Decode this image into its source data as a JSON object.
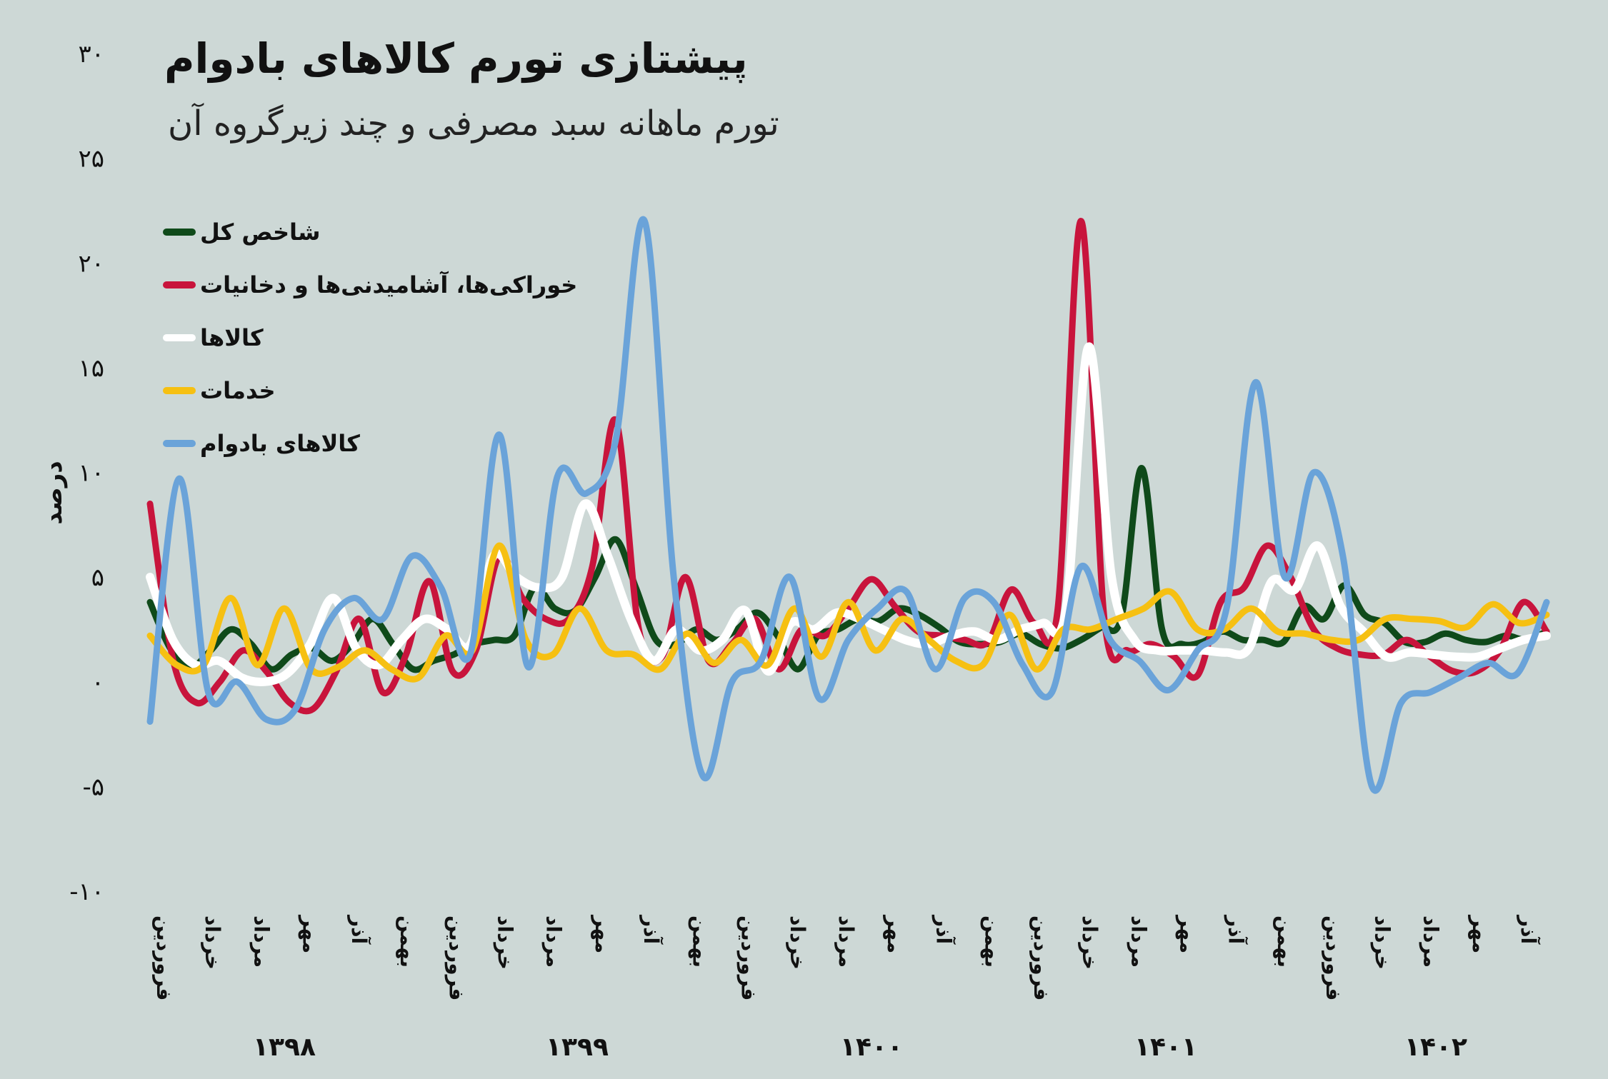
{
  "title": "پیشتازی تورم کالاهای بادوام",
  "subtitle": "تورم ماهانه سبد مصرفی و چند زیرگروه آن",
  "legend_items": [
    {
      "label": "شاخص کل",
      "color": "#0f4a1a"
    },
    {
      "label": "خوراکی‌ها، آشامیدنی‌ها و دخانیات",
      "color": "#c8143c"
    },
    {
      "label": "کالاها",
      "color": "#ffffff"
    },
    {
      "label": "خدمات",
      "color": "#f6c012"
    },
    {
      "label": "کالاهای بادوام",
      "color": "#6aa3d9"
    }
  ],
  "chart_data": {
    "type": "line",
    "title": "پیشتازی تورم کالاهای بادوام",
    "subtitle": "تورم ماهانه سبد مصرفی و چند زیرگروه آن",
    "ylabel": "درصد",
    "ylim": [
      -10,
      30
    ],
    "yticks": [
      -10,
      -5,
      0,
      5,
      10,
      15,
      20,
      25,
      30
    ],
    "ytick_labels": [
      "-۱۰",
      "-۵",
      "۰",
      "۵",
      "۱۰",
      "۱۵",
      "۲۰",
      "۲۵",
      "۳۰"
    ],
    "x_month_labels": [
      "فروردین",
      "خرداد",
      "مرداد",
      "مهر",
      "آذر",
      "بهمن",
      "فروردین",
      "خرداد",
      "مرداد",
      "مهر",
      "آذر",
      "بهمن",
      "فروردین",
      "خرداد",
      "مرداد",
      "مهر",
      "آذر",
      "بهمن",
      "فروردین",
      "خرداد",
      "مرداد",
      "مهر",
      "آذر",
      "بهمن",
      "فروردین",
      "خرداد",
      "مرداد",
      "مهر",
      "آذر"
    ],
    "year_labels": [
      "۱۳۹۸",
      "۱۳۹۹",
      "۱۴۰۰",
      "۱۴۰۱",
      "۱۴۰۲"
    ],
    "grid": false,
    "legend_position": "top-left",
    "series": [
      {
        "name": "شاخص کل",
        "color": "#0f4a1a",
        "values": [
          3.8,
          1.6,
          0.7,
          1.5,
          2.5,
          1.8,
          0.6,
          1.3,
          1.6,
          1.0,
          1.8,
          3.0,
          1.8,
          0.6,
          1.0,
          1.3,
          1.8,
          2.0,
          2.2,
          4.5,
          3.5,
          3.4,
          5.0,
          6.8,
          4.5,
          2.0,
          1.8,
          2.5,
          2.0,
          2.5,
          3.3,
          2.2,
          0.6,
          2.2,
          2.5,
          3.0,
          2.9,
          3.5,
          3.2,
          2.6,
          1.9,
          1.8,
          1.9,
          2.3,
          1.8,
          1.6,
          2.0,
          2.6,
          3.1,
          10.2,
          2.5,
          1.8,
          1.9,
          2.4,
          2.0,
          2.0,
          1.9,
          3.6,
          3.0,
          4.6,
          3.2,
          2.8,
          1.9,
          1.9,
          2.3,
          2.0,
          1.9,
          2.2,
          2.0,
          2.4
        ]
      },
      {
        "name": "خوراکی‌ها، آشامیدنی‌ها و دخانیات",
        "color": "#c8143c",
        "values": [
          8.5,
          1.0,
          -1.0,
          0.0,
          1.5,
          0.5,
          -1.0,
          -1.3,
          0.5,
          3.0,
          -0.5,
          1.3,
          4.8,
          0.5,
          1.5,
          6.0,
          4.0,
          3.0,
          3.0,
          5.5,
          12.5,
          2.5,
          1.2,
          5.0,
          1.0,
          1.8,
          3.0,
          0.6,
          2.5,
          2.2,
          3.5,
          4.9,
          3.6,
          2.4,
          2.2,
          2.0,
          1.9,
          4.4,
          2.8,
          3.5,
          22.0,
          3.0,
          1.5,
          1.8,
          1.2,
          0.3,
          3.8,
          4.5,
          6.5,
          5.0,
          2.5,
          1.6,
          1.3,
          1.3,
          2.0,
          1.2,
          0.5,
          0.5,
          1.5,
          3.8,
          2.4
        ]
      },
      {
        "name": "کالاها",
        "color": "#ffffff",
        "values": [
          5.0,
          2.0,
          0.8,
          1.0,
          0.2,
          0.0,
          0.4,
          1.8,
          4.0,
          1.6,
          0.8,
          2.0,
          3.0,
          2.5,
          1.8,
          6.0,
          5.0,
          4.5,
          5.0,
          8.5,
          6.0,
          3.0,
          1.0,
          2.5,
          1.5,
          2.0,
          3.4,
          0.5,
          2.8,
          2.5,
          3.3,
          3.0,
          2.5,
          2.0,
          1.8,
          2.2,
          2.4,
          2.0,
          2.5,
          2.8,
          3.4,
          16.0,
          5.0,
          2.0,
          1.5,
          1.5,
          1.5,
          1.4,
          1.6,
          4.8,
          4.4,
          6.5,
          3.6,
          2.4,
          1.2,
          1.4,
          1.3,
          1.2,
          1.2,
          1.6,
          2.0,
          2.2
        ]
      },
      {
        "name": "خدمات",
        "color": "#f6c012",
        "values": [
          2.2,
          0.8,
          0.8,
          4.0,
          0.8,
          3.5,
          0.6,
          0.7,
          1.5,
          0.6,
          0.2,
          2.2,
          1.5,
          6.5,
          2.0,
          1.3,
          3.5,
          1.5,
          1.3,
          0.6,
          2.3,
          0.9,
          2.0,
          0.8,
          3.5,
          1.2,
          3.8,
          1.5,
          3.0,
          2.0,
          1.0,
          0.8,
          3.2,
          0.6,
          2.5,
          2.5,
          3.0,
          3.5,
          4.3,
          2.5,
          2.5,
          3.5,
          2.4,
          2.3,
          2.0,
          2.0,
          3.0,
          3.0,
          2.9,
          2.6,
          3.7,
          2.8,
          3.2
        ]
      },
      {
        "name": "کالاهای بادوام",
        "color": "#6aa3d9",
        "values": [
          -1.9,
          9.7,
          -0.5,
          0.0,
          -1.8,
          -1.3,
          2.5,
          4.0,
          3.0,
          6.0,
          4.5,
          1.3,
          11.8,
          0.7,
          9.8,
          9.0,
          11.5,
          22.0,
          5.0,
          -4.5,
          0.0,
          1.0,
          5.0,
          -0.8,
          2.0,
          3.5,
          4.3,
          0.6,
          4.0,
          3.8,
          0.8,
          -0.5,
          5.5,
          2.0,
          1.0,
          -0.4,
          1.5,
          3.5,
          14.3,
          5.0,
          10.0,
          6.0,
          -5.0,
          -1.0,
          -0.5,
          0.2,
          0.9,
          0.4,
          3.8
        ]
      }
    ]
  }
}
